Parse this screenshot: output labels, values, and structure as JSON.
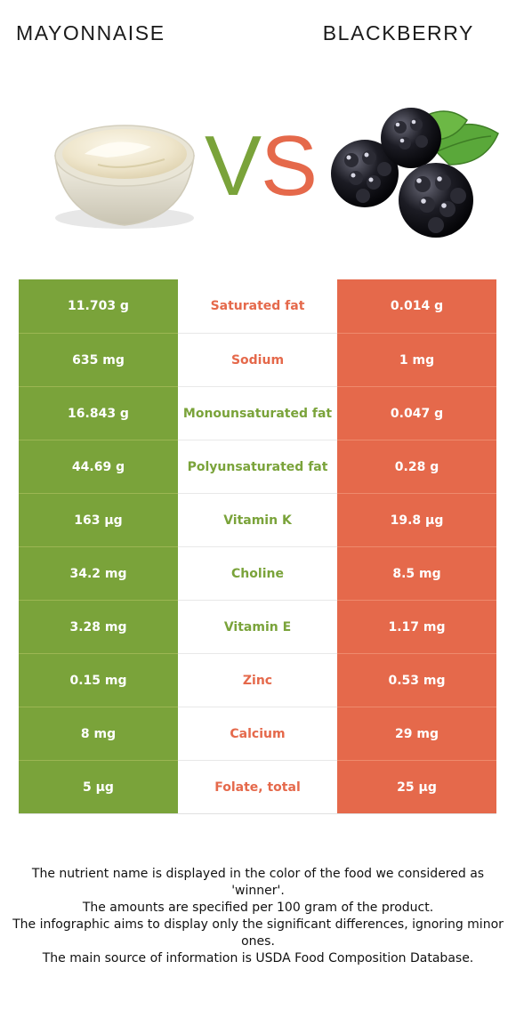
{
  "header": {
    "left_title": "MAYONNAISE",
    "right_title": "BLACKBERRY",
    "vs_v": "V",
    "vs_s": "S"
  },
  "colors": {
    "left_food": "#7aa33a",
    "right_food": "#e5694b"
  },
  "icons": {
    "left": "mayonnaise-bowl-icon",
    "right": "blackberry-icon"
  },
  "rows": [
    {
      "left": "11.703 g",
      "nutrient": "Saturated fat",
      "right": "0.014 g",
      "winner": "right"
    },
    {
      "left": "635 mg",
      "nutrient": "Sodium",
      "right": "1 mg",
      "winner": "right"
    },
    {
      "left": "16.843 g",
      "nutrient": "Monounsaturated fat",
      "right": "0.047 g",
      "winner": "left"
    },
    {
      "left": "44.69 g",
      "nutrient": "Polyunsaturated fat",
      "right": "0.28 g",
      "winner": "left"
    },
    {
      "left": "163 µg",
      "nutrient": "Vitamin K",
      "right": "19.8 µg",
      "winner": "left"
    },
    {
      "left": "34.2 mg",
      "nutrient": "Choline",
      "right": "8.5 mg",
      "winner": "left"
    },
    {
      "left": "3.28 mg",
      "nutrient": "Vitamin E",
      "right": "1.17 mg",
      "winner": "left"
    },
    {
      "left": "0.15 mg",
      "nutrient": "Zinc",
      "right": "0.53 mg",
      "winner": "right"
    },
    {
      "left": "8 mg",
      "nutrient": "Calcium",
      "right": "29 mg",
      "winner": "right"
    },
    {
      "left": "5 µg",
      "nutrient": "Folate, total",
      "right": "25 µg",
      "winner": "right"
    }
  ],
  "footer": {
    "line1": "The nutrient name is displayed in the color of the food we considered as 'winner'.",
    "line2": "The amounts are specified per 100 gram of the product.",
    "line3": "The infographic aims to display only the significant differences, ignoring minor ones.",
    "line4": "The main source of information is USDA Food Composition Database."
  }
}
